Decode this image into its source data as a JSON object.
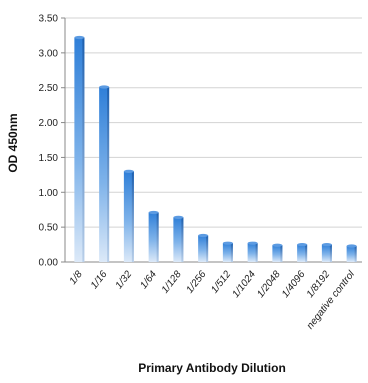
{
  "chart_data": {
    "type": "bar",
    "categories": [
      "1/8",
      "1/16",
      "1/32",
      "1/64",
      "1/128",
      "1/256",
      "1/512",
      "1/1024",
      "1/2048",
      "1/4096",
      "1/8192",
      "negative control"
    ],
    "values": [
      3.22,
      2.51,
      1.3,
      0.71,
      0.64,
      0.38,
      0.27,
      0.27,
      0.24,
      0.25,
      0.25,
      0.23
    ],
    "yticks": [
      "0.00",
      "0.50",
      "1.00",
      "1.50",
      "2.00",
      "2.50",
      "3.00",
      "3.50"
    ],
    "ylim": [
      0,
      3.5
    ],
    "xlabel": "Primary Antibody Dilution",
    "ylabel": "OD 450nm",
    "grid": true,
    "bar_color_top": "#2f7fd8",
    "bar_color_bottom": "#dce9f8"
  }
}
